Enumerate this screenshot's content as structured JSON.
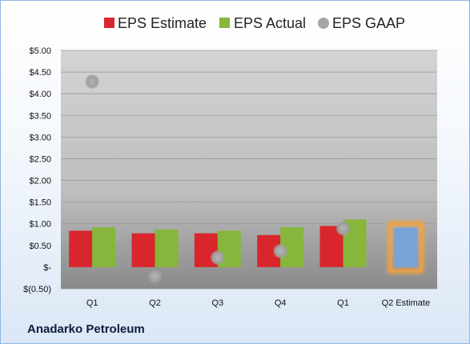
{
  "company": "Anadarko Petroleum",
  "colors": {
    "estimate": "#d9262c",
    "actual": "#86b63c",
    "gaap": "#a6a6a6",
    "q2_estimate_fill": "#7aa3d6",
    "q2_estimate_glow": "#f4a23c"
  },
  "chart_data": {
    "type": "bar",
    "categories": [
      "Q1",
      "Q2",
      "Q3",
      "Q4",
      "Q1",
      "Q2 Estimate"
    ],
    "series": [
      {
        "name": "EPS Estimate",
        "type": "bar",
        "values": [
          0.84,
          0.78,
          0.78,
          0.74,
          0.95,
          null
        ]
      },
      {
        "name": "EPS Actual",
        "type": "bar",
        "values": [
          0.92,
          0.87,
          0.84,
          0.92,
          1.1,
          0.91
        ]
      },
      {
        "name": "EPS GAAP",
        "type": "scatter",
        "values": [
          4.28,
          -0.21,
          0.22,
          0.37,
          0.89,
          null
        ]
      }
    ],
    "highlighted_category": "Q2 Estimate",
    "ylim": [
      -0.5,
      5.0
    ],
    "yticks": [
      -0.5,
      0,
      0.5,
      1.0,
      1.5,
      2.0,
      2.5,
      3.0,
      3.5,
      4.0,
      4.5,
      5.0
    ],
    "ytick_labels": [
      "$(0.50)",
      "$-",
      "$0.50",
      "$1.00",
      "$1.50",
      "$2.00",
      "$2.50",
      "$3.00",
      "$3.50",
      "$4.00",
      "$4.50",
      "$5.00"
    ],
    "grid": true,
    "legend_position": "top"
  }
}
